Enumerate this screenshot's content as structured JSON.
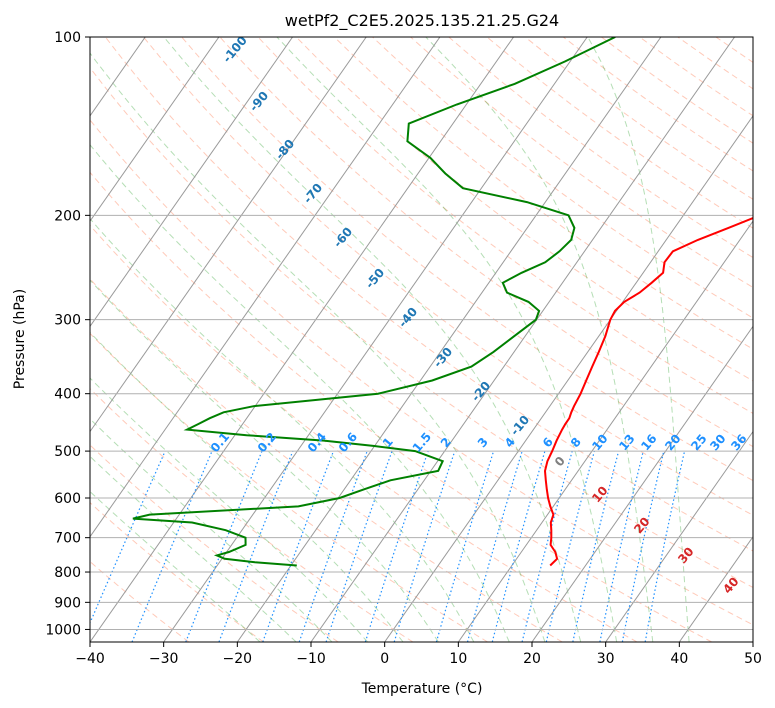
{
  "chart_data": {
    "type": "line",
    "title": "wetPf2_C2E5.2025.135.21.25.G24",
    "xlabel": "Temperature (°C)",
    "ylabel": "Pressure (hPa)",
    "xlim": [
      -40,
      50
    ],
    "ylim": [
      1050,
      100
    ],
    "y_scale": "log",
    "grid": true,
    "x_ticks": [
      "−40",
      "−30",
      "−20",
      "−10",
      "0",
      "10",
      "20",
      "30",
      "40",
      "50"
    ],
    "x_tick_values": [
      -40,
      -30,
      -20,
      -10,
      0,
      10,
      20,
      30,
      40,
      50
    ],
    "y_ticks": [
      "100",
      "200",
      "300",
      "400",
      "500",
      "600",
      "700",
      "800",
      "900",
      "1000"
    ],
    "y_tick_values": [
      100,
      200,
      300,
      400,
      500,
      600,
      700,
      800,
      900,
      1000
    ],
    "series": [
      {
        "color": "#ff0000",
        "pressure": [
          780,
          760,
          740,
          720,
          700,
          680,
          660,
          640,
          620,
          600,
          580,
          560,
          540,
          520,
          500,
          480,
          460,
          450,
          440,
          430,
          420,
          400,
          380,
          360,
          340,
          320,
          300,
          290,
          280,
          270,
          260,
          250,
          240,
          230,
          220,
          210,
          200,
          190,
          180,
          170,
          160,
          150,
          140,
          130,
          120,
          110,
          100
        ],
        "temp": [
          15.2,
          15.5,
          14.6,
          13.3,
          12.7,
          12.0,
          11.2,
          10.8,
          9.6,
          8.5,
          7.5,
          6.5,
          5.5,
          4.9,
          4.6,
          4.2,
          3.9,
          3.8,
          3.8,
          3.5,
          3.3,
          3.0,
          2.5,
          2.0,
          1.5,
          0.9,
          0.0,
          -0.2,
          0.2,
          1.4,
          2.1,
          2.7,
          1.9,
          2.0,
          4.3,
          7.3,
          10.4,
          13.3,
          15.5,
          16.5,
          16.7,
          16.0,
          15.6,
          15.3,
          15.6,
          17.1,
          19.1
        ]
      },
      {
        "color": "#008000",
        "pressure": [
          780,
          770,
          760,
          750,
          740,
          720,
          700,
          680,
          660,
          650,
          640,
          620,
          600,
          580,
          560,
          540,
          520,
          500,
          490,
          480,
          470,
          460,
          450,
          440,
          430,
          420,
          400,
          380,
          360,
          340,
          320,
          300,
          290,
          280,
          270,
          260,
          250,
          240,
          230,
          220,
          210,
          200,
          190,
          180,
          170,
          160,
          150,
          140,
          130,
          120,
          110,
          100
        ],
        "dewpoint": [
          -19.2,
          -25.2,
          -29.6,
          -31.0,
          -29.7,
          -28.1,
          -28.8,
          -32.2,
          -37.5,
          -45.9,
          -44.0,
          -24.6,
          -19.8,
          -17.3,
          -14.6,
          -9.0,
          -9.3,
          -14.0,
          -20.2,
          -27.4,
          -38.4,
          -47.0,
          -46.0,
          -45.0,
          -43.7,
          -40.2,
          -24.5,
          -18.4,
          -14.4,
          -12.8,
          -11.5,
          -10.1,
          -10.5,
          -12.8,
          -16.6,
          -18.1,
          -16.5,
          -14.3,
          -13.4,
          -12.9,
          -13.6,
          -15.6,
          -22.5,
          -32.5,
          -36.3,
          -39.8,
          -44.5,
          -46.0,
          -41.3,
          -35.4,
          -30.7,
          -26.2
        ]
      }
    ],
    "dry_adiabat_labels": [
      "-100",
      "-90",
      "-80",
      "-70",
      "-60",
      "-50",
      "-40",
      "-30",
      "-20",
      "-10"
    ],
    "dry_adiabat_color": "#1f77b4",
    "mixing_ratio_labels": [
      "0.1",
      "0.2",
      "0.4",
      "0.6",
      "1",
      "1.5",
      "2",
      "3",
      "4",
      "6",
      "8",
      "10",
      "13",
      "16",
      "20",
      "25",
      "30",
      "36"
    ],
    "mixing_ratio_color": "#1e90ff",
    "moist_adiabat_labels": [
      "0",
      "10",
      "20",
      "30",
      "40"
    ],
    "moist_adiabat_color": "#d62728",
    "zero_label_color": "#808080"
  }
}
